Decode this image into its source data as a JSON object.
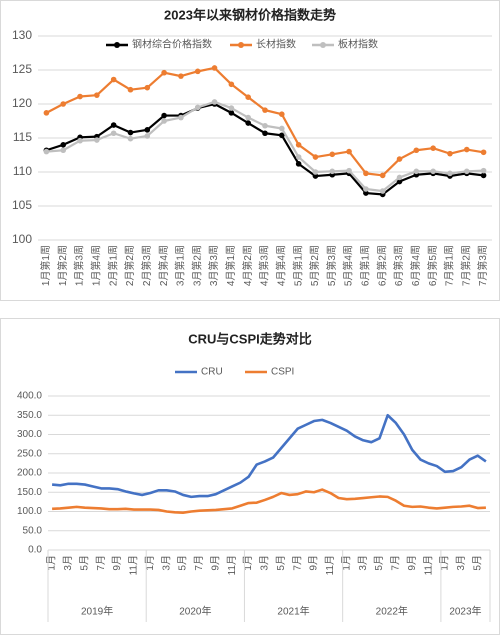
{
  "chart_data": [
    {
      "type": "line",
      "title": "2023年以来钢材价格指数走势",
      "categories": [
        "1月第1周",
        "1月第2周",
        "1月第3周",
        "1月第4周",
        "2月第1周",
        "2月第2周",
        "2月第3周",
        "2月第4周",
        "3月第1周",
        "3月第2周",
        "3月第3周",
        "4月第1周",
        "4月第2周",
        "4月第3周",
        "4月第4周",
        "5月第1周",
        "5月第2周",
        "5月第3周",
        "5月第4周",
        "6月第1周",
        "6月第2周",
        "6月第3周",
        "6月第4周",
        "6月第5周",
        "7月第1周",
        "7月第2周",
        "7月第3周"
      ],
      "series": [
        {
          "name": "钢材综合价格指数",
          "color": "#000000",
          "values": [
            113.2,
            114.0,
            115.1,
            115.2,
            116.9,
            115.8,
            116.2,
            118.3,
            118.3,
            119.4,
            120.0,
            118.7,
            117.2,
            115.7,
            115.4,
            111.2,
            109.4,
            109.6,
            109.8,
            106.9,
            106.7,
            108.6,
            109.6,
            109.8,
            109.4,
            109.8,
            109.5
          ]
        },
        {
          "name": "长材指数",
          "color": "#ed7d31",
          "values": [
            118.7,
            120.0,
            121.1,
            121.3,
            123.6,
            122.1,
            122.4,
            124.6,
            124.1,
            124.8,
            125.3,
            122.9,
            121.0,
            119.1,
            118.5,
            114.0,
            112.2,
            112.6,
            113.0,
            109.8,
            109.5,
            111.9,
            113.2,
            113.5,
            112.7,
            113.3,
            112.9
          ]
        },
        {
          "name": "板材指数",
          "color": "#bfbfbf",
          "values": [
            113.0,
            113.2,
            114.6,
            114.7,
            115.7,
            114.9,
            115.3,
            117.5,
            118.0,
            119.5,
            120.3,
            119.4,
            118.0,
            116.8,
            116.4,
            112.2,
            110.0,
            110.1,
            110.2,
            107.5,
            107.2,
            109.2,
            110.1,
            110.1,
            109.8,
            110.1,
            110.2
          ]
        }
      ],
      "ylim": [
        100,
        130
      ],
      "yticks": [
        100,
        105,
        110,
        115,
        120,
        125,
        130
      ],
      "markers": true,
      "legend": "top"
    },
    {
      "type": "line",
      "title": "CRU与CSPI走势对比",
      "categories": [
        "1月",
        null,
        "3月",
        null,
        "5月",
        null,
        "7月",
        null,
        "9月",
        null,
        "11月",
        null,
        "1月",
        null,
        "3月",
        null,
        "5月",
        null,
        "7月",
        null,
        "9月",
        null,
        "11月",
        null,
        "1月",
        null,
        "3月",
        null,
        "5月",
        null,
        "7月",
        null,
        "9月",
        null,
        "11月",
        null,
        "1月",
        null,
        "3月",
        null,
        "5月",
        null,
        "7月",
        null,
        "9月",
        null,
        "11月",
        null,
        "1月",
        null,
        "3月",
        null,
        "5月",
        null
      ],
      "x_groups": [
        "2019年",
        "2020年",
        "2021年",
        "2022年",
        "2023年"
      ],
      "series": [
        {
          "name": "CRU",
          "color": "#4472c4",
          "values": [
            170,
            168,
            172,
            172,
            170,
            165,
            160,
            160,
            158,
            152,
            147,
            143,
            148,
            155,
            155,
            152,
            143,
            138,
            140,
            140,
            145,
            155,
            165,
            175,
            190,
            222,
            230,
            240,
            265,
            290,
            315,
            325,
            335,
            338,
            330,
            320,
            310,
            295,
            285,
            280,
            290,
            350,
            330,
            300,
            260,
            235,
            225,
            218,
            203,
            205,
            215,
            235,
            245,
            230
          ]
        },
        {
          "name": "CSPI",
          "color": "#ed7d31",
          "values": [
            107,
            108,
            110,
            112,
            110,
            109,
            108,
            106,
            106,
            107,
            105,
            105,
            105,
            104,
            100,
            98,
            97,
            100,
            102,
            103,
            104,
            106,
            108,
            115,
            122,
            123,
            130,
            138,
            148,
            143,
            145,
            152,
            150,
            157,
            148,
            135,
            132,
            133,
            135,
            137,
            139,
            138,
            128,
            115,
            112,
            113,
            110,
            108,
            110,
            112,
            113,
            115,
            109,
            110
          ]
        }
      ],
      "ylim": [
        0,
        400
      ],
      "yticks": [
        {
          "value": 0,
          "label": "0.0"
        },
        {
          "value": 50,
          "label": "50.0"
        },
        {
          "value": 100,
          "label": "100.0"
        },
        {
          "value": 150,
          "label": "150.0"
        },
        {
          "value": 200,
          "label": "200.0"
        },
        {
          "value": 250,
          "label": "250.0"
        },
        {
          "value": 300,
          "label": "300.0"
        },
        {
          "value": 350,
          "label": "350.0"
        },
        {
          "value": 400,
          "label": "400.0"
        }
      ],
      "markers": false,
      "legend": "top"
    }
  ]
}
